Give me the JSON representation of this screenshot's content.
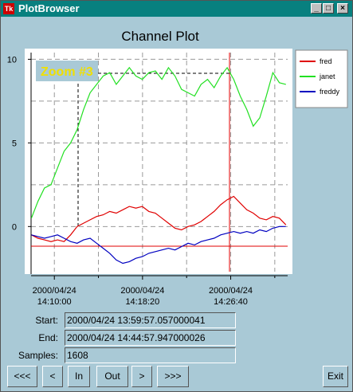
{
  "window_title": "PlotBrowser",
  "chart_data": {
    "type": "line",
    "title": "Channel Plot",
    "annotation": "Zoom #3",
    "grid": true,
    "x": [
      50870,
      50907,
      50944,
      50981,
      51018,
      51055,
      51092,
      51129,
      51166,
      51203,
      51240,
      51277,
      51314,
      51351,
      51388,
      51425,
      51462,
      51499,
      51536,
      51573,
      51610,
      51647,
      51684,
      51721,
      51758,
      51795,
      51832,
      51869,
      51906,
      51943,
      51980,
      52017,
      52054,
      52091,
      52128,
      52165,
      52202,
      52239,
      52276,
      52313
    ],
    "series": [
      {
        "name": "fred",
        "color": "#e00000",
        "values": [
          -0.5,
          -0.7,
          -0.8,
          -0.9,
          -0.8,
          -0.9,
          -0.5,
          0.0,
          0.2,
          0.4,
          0.6,
          0.7,
          0.9,
          0.8,
          1.0,
          1.2,
          1.1,
          1.2,
          0.9,
          0.8,
          0.5,
          0.2,
          -0.1,
          -0.2,
          0.0,
          0.1,
          0.3,
          0.6,
          0.9,
          1.3,
          1.6,
          1.8,
          1.4,
          1.0,
          0.8,
          0.5,
          0.4,
          0.6,
          0.5,
          0.1
        ]
      },
      {
        "name": "janet",
        "color": "#22e022",
        "values": [
          0.5,
          1.5,
          2.3,
          2.5,
          3.5,
          4.5,
          5.0,
          5.8,
          7.0,
          8.0,
          8.5,
          9.0,
          9.2,
          8.5,
          9.0,
          9.5,
          9.0,
          8.8,
          9.2,
          9.3,
          8.8,
          9.5,
          9.0,
          8.2,
          8.0,
          7.8,
          8.5,
          8.8,
          8.3,
          9.0,
          9.5,
          8.8,
          7.8,
          7.0,
          6.0,
          6.5,
          7.8,
          9.2,
          8.6,
          8.5
        ]
      },
      {
        "name": "freddy",
        "color": "#0000c0",
        "values": [
          -0.5,
          -0.6,
          -0.7,
          -0.6,
          -0.5,
          -0.7,
          -0.9,
          -1.0,
          -0.8,
          -0.7,
          -1.0,
          -1.3,
          -1.6,
          -2.0,
          -2.2,
          -2.1,
          -1.9,
          -1.8,
          -1.6,
          -1.5,
          -1.4,
          -1.3,
          -1.4,
          -1.2,
          -1.0,
          -1.1,
          -0.9,
          -0.8,
          -0.7,
          -0.5,
          -0.4,
          -0.3,
          -0.4,
          -0.3,
          -0.4,
          -0.2,
          -0.3,
          -0.1,
          0.0,
          0.0
        ]
      }
    ],
    "xlim": [
      50868,
      52323
    ],
    "ylim": [
      -2.7,
      10.4
    ],
    "xticks": [
      {
        "value": 51000,
        "label": "2000/04/24\n14:10:00"
      },
      {
        "value": 51500,
        "label": "2000/04/24\n14:18:20"
      },
      {
        "value": 52000,
        "label": "2000/04/24\n14:26:40"
      }
    ],
    "xminor": [
      51250,
      51750,
      52250
    ],
    "yticks": [
      0,
      5,
      10
    ],
    "yminor": [
      2.5,
      7.5
    ]
  },
  "fields": [
    {
      "label": "Start:",
      "value": "2000/04/24 13:59:57.057000041"
    },
    {
      "label": "End:",
      "value": "2000/04/24 14:44:57.947000026"
    },
    {
      "label": "Samples:",
      "value": "1608"
    }
  ],
  "buttons": [
    "<<<",
    "<",
    "In",
    "Out",
    ">",
    ">>>",
    "Exit"
  ]
}
